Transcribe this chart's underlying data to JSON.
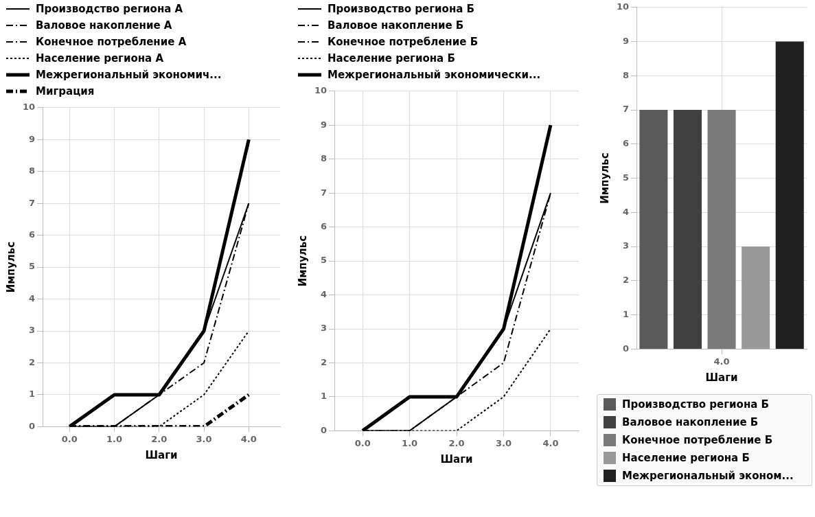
{
  "chart_data": [
    {
      "type": "line",
      "xlabel": "Шаги",
      "ylabel": "Импульс",
      "x": [
        0,
        1,
        2,
        3,
        4
      ],
      "xlim": [
        -0.6,
        4.7
      ],
      "xticks": [
        {
          "value": 0,
          "label": "0.0"
        },
        {
          "value": 1,
          "label": "1.0"
        },
        {
          "value": 2,
          "label": "2.0"
        },
        {
          "value": 3,
          "label": "3.0"
        },
        {
          "value": 4,
          "label": "4.0"
        }
      ],
      "ylim": [
        0,
        10
      ],
      "yticks": [
        0,
        1,
        2,
        3,
        4,
        5,
        6,
        7,
        8,
        9,
        10
      ],
      "grid": true,
      "legend": "top",
      "series": [
        {
          "name": "Производство региона А",
          "color": "#000000",
          "line_style": "solid",
          "values": [
            0,
            0,
            1,
            3,
            7
          ]
        },
        {
          "name": "Валовое накопление А",
          "color": "#000000",
          "line_style": "dashed",
          "values": [
            0,
            0,
            1,
            2,
            7
          ]
        },
        {
          "name": "Конечное потребление А",
          "color": "#000000",
          "line_style": "dashed",
          "values": [
            null,
            null,
            null,
            null,
            null
          ]
        },
        {
          "name": "Население региона А",
          "color": "#000000",
          "line_style": "dotted",
          "values": [
            0,
            0,
            0,
            1,
            3
          ]
        },
        {
          "name": "Межрегиональный экономич...",
          "color": "#000000",
          "line_style": "solid",
          "values": [
            0,
            1,
            1,
            3,
            9
          ]
        },
        {
          "name": "Миграция",
          "color": "#000000",
          "line_style": "dashed",
          "values": [
            0,
            0,
            0,
            0,
            1
          ]
        }
      ]
    },
    {
      "type": "line",
      "xlabel": "Шаги",
      "ylabel": "Импульс",
      "x": [
        0,
        1,
        2,
        3,
        4
      ],
      "xlim": [
        -0.6,
        4.6
      ],
      "xticks": [
        {
          "value": 0,
          "label": "0.0"
        },
        {
          "value": 1,
          "label": "1.0"
        },
        {
          "value": 2,
          "label": "2.0"
        },
        {
          "value": 3,
          "label": "3.0"
        },
        {
          "value": 4,
          "label": "4.0"
        }
      ],
      "ylim": [
        0,
        10
      ],
      "yticks": [
        0,
        1,
        2,
        3,
        4,
        5,
        6,
        7,
        8,
        9,
        10
      ],
      "grid": true,
      "legend": "top",
      "series": [
        {
          "name": "Производство региона Б",
          "color": "#000000",
          "line_style": "solid",
          "values": [
            0,
            0,
            1,
            3,
            7
          ]
        },
        {
          "name": "Валовое накопление Б",
          "color": "#000000",
          "line_style": "dashed",
          "values": [
            0,
            0,
            1,
            2,
            7
          ]
        },
        {
          "name": "Конечное потребление Б",
          "color": "#000000",
          "line_style": "dashed",
          "values": [
            null,
            null,
            null,
            null,
            null
          ]
        },
        {
          "name": "Население региона Б",
          "color": "#000000",
          "line_style": "dotted",
          "values": [
            0,
            0,
            0,
            1,
            3
          ]
        },
        {
          "name": "Межрегиональный экономически...",
          "color": "#000000",
          "line_style": "solid",
          "values": [
            0,
            1,
            1,
            3,
            9
          ]
        }
      ]
    },
    {
      "type": "bar",
      "xlabel": "Шаги",
      "ylabel": "Импульс",
      "categories": [
        null,
        null,
        "4.0",
        null,
        null
      ],
      "ylim": [
        0,
        10
      ],
      "yticks": [
        0,
        1,
        2,
        3,
        4,
        5,
        6,
        7,
        8,
        9,
        10
      ],
      "grid": true,
      "legend": "bottom",
      "series": [
        {
          "name": "Производство региона Б",
          "color": "#5a5a5a",
          "values": [
            7,
            null,
            null,
            null,
            null
          ]
        },
        {
          "name": "Валовое накопление Б",
          "color": "#404040",
          "values": [
            null,
            7,
            null,
            null,
            null
          ]
        },
        {
          "name": "Конечное потребление Б",
          "color": "#7a7a7a",
          "values": [
            null,
            null,
            7,
            null,
            null
          ]
        },
        {
          "name": "Население региона Б",
          "color": "#999999",
          "values": [
            null,
            null,
            null,
            3,
            null
          ]
        },
        {
          "name": "Межрегиональный эконом...",
          "color": "#202020",
          "values": [
            null,
            null,
            null,
            null,
            9
          ]
        }
      ]
    }
  ]
}
